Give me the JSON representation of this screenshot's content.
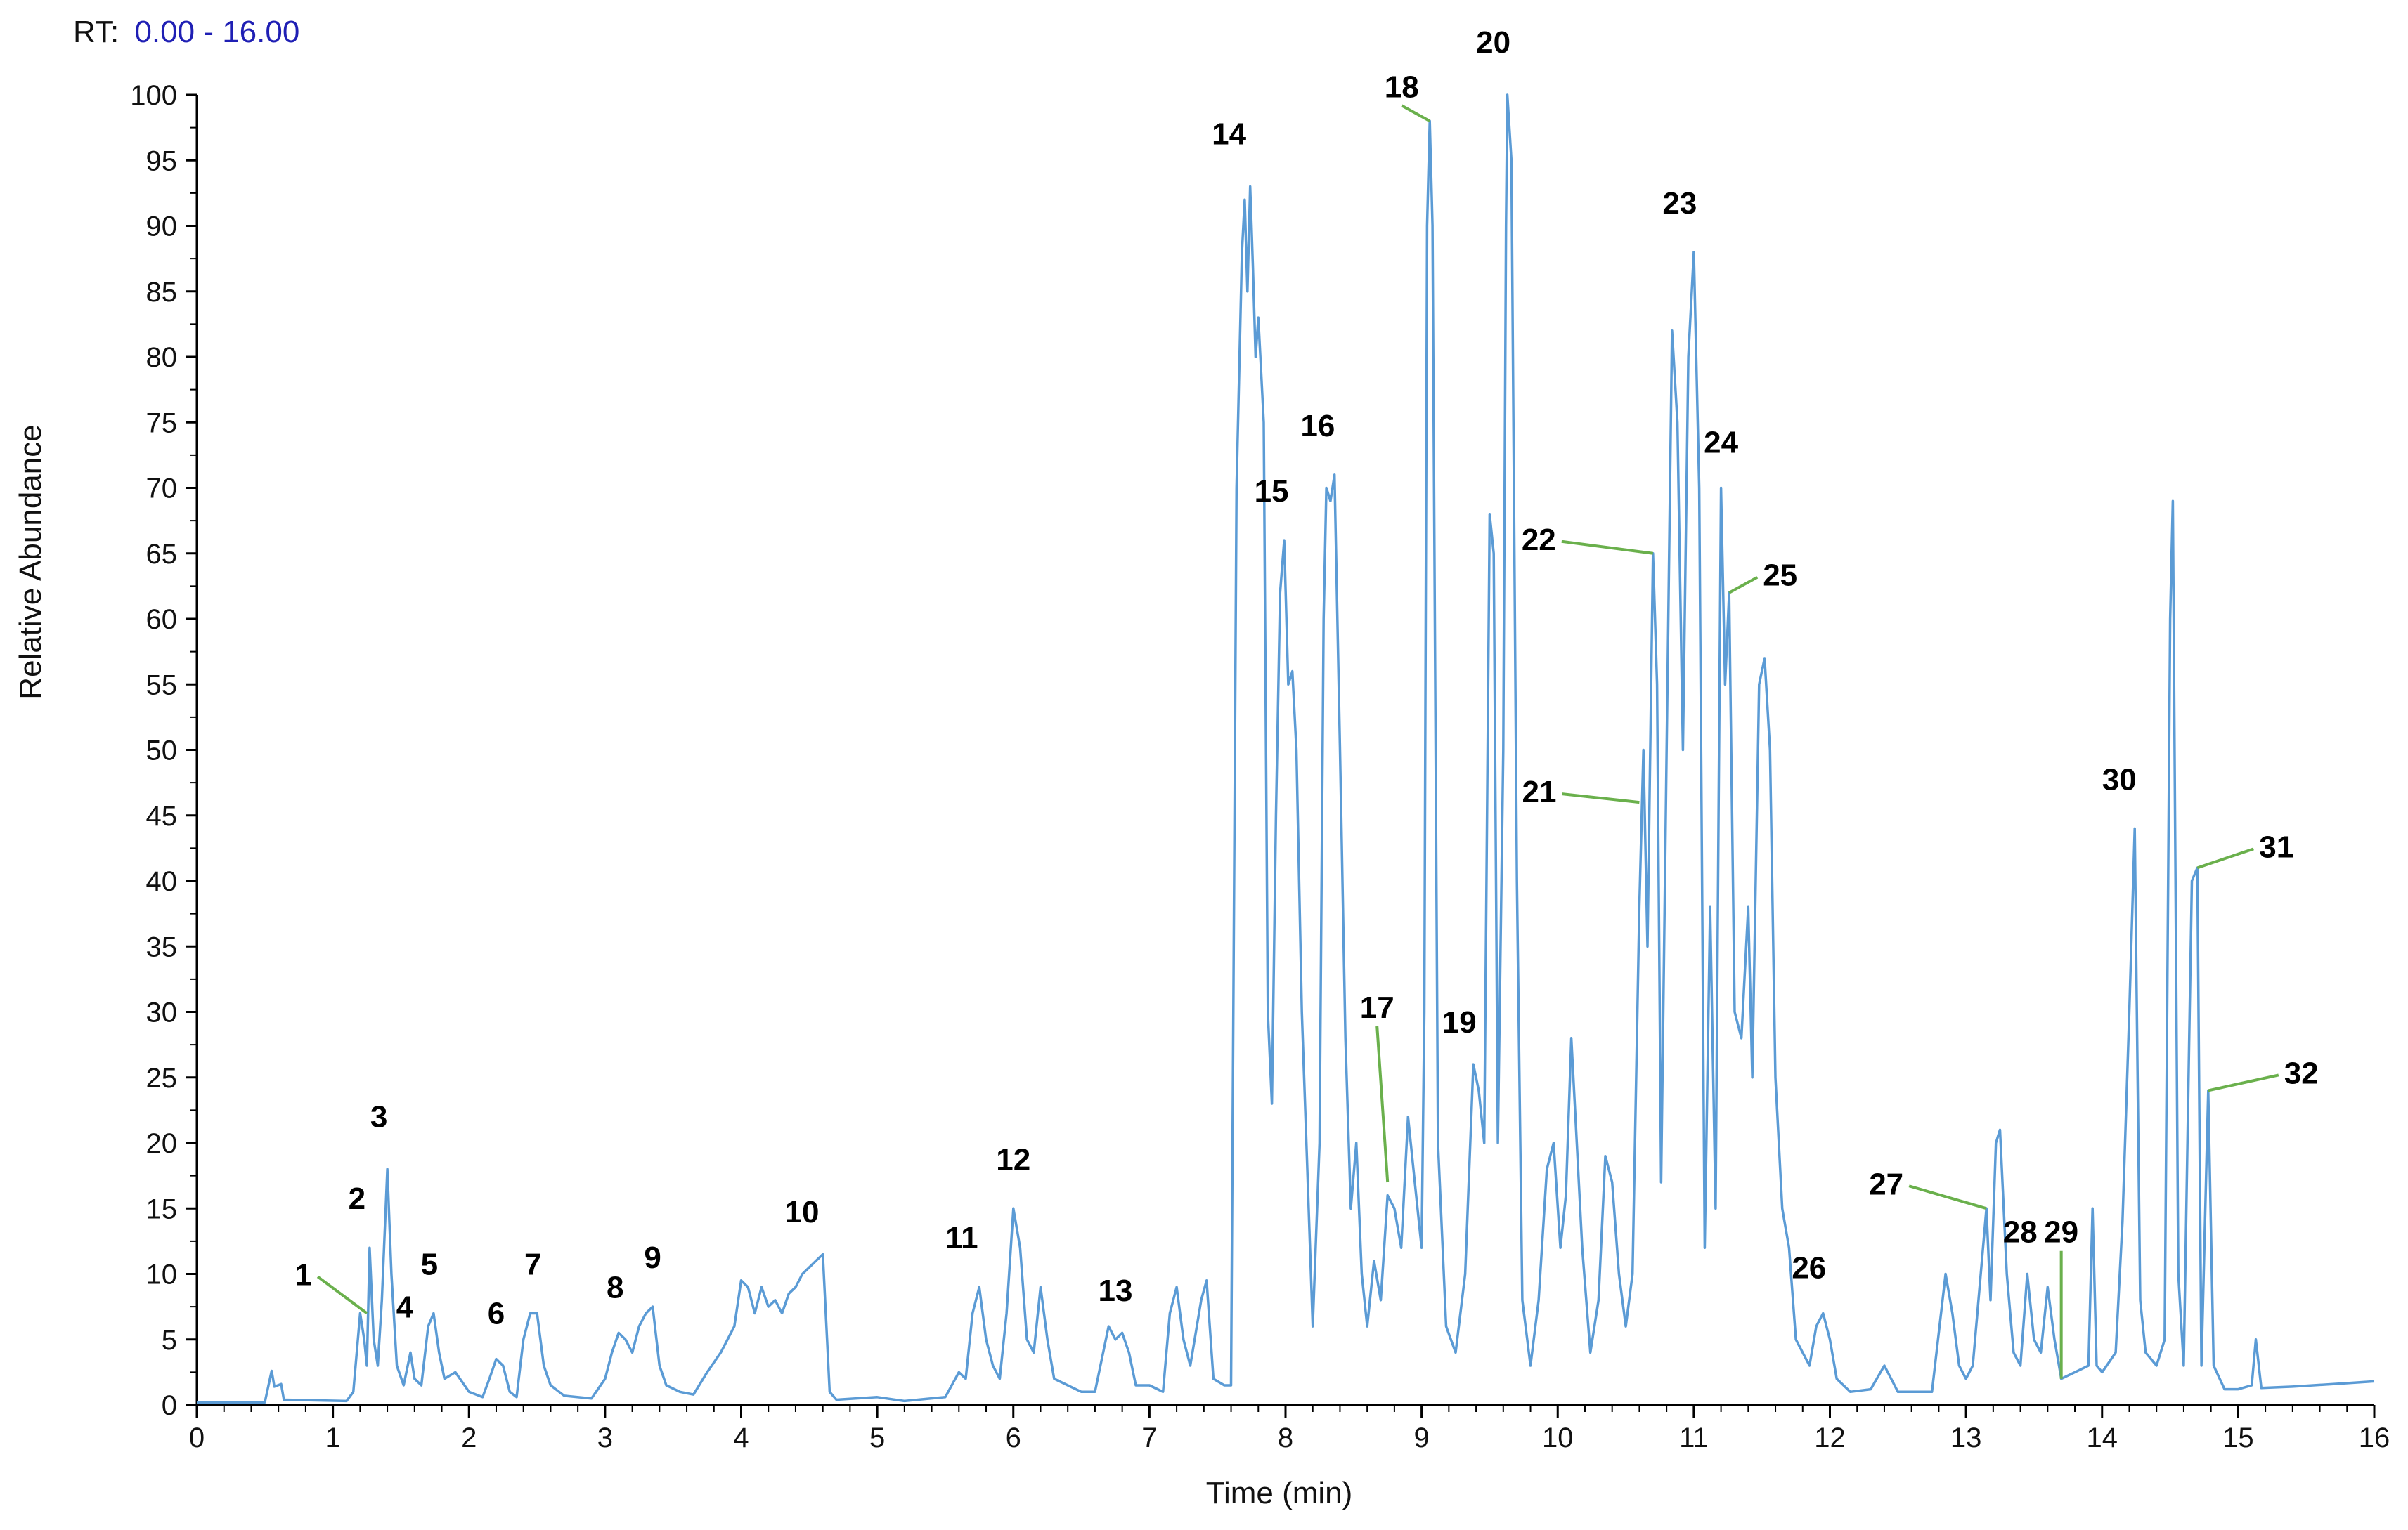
{
  "header": {
    "rt_prefix": "RT:",
    "rt_range": "0.00 - 16.00"
  },
  "colors": {
    "trace": "#5b9bd5",
    "callout": "#6ab04c",
    "rt_range": "#1f1fb4",
    "axis": "#000000"
  },
  "chart_data": {
    "type": "line",
    "xlabel": "Time (min)",
    "ylabel": "Relative Abundance",
    "xlim": [
      0,
      16
    ],
    "ylim": [
      0,
      100
    ],
    "x_ticks": [
      "0",
      "1",
      "2",
      "3",
      "4",
      "5",
      "6",
      "7",
      "8",
      "9",
      "10",
      "11",
      "12",
      "13",
      "14",
      "15",
      "16"
    ],
    "y_ticks": [
      "0",
      "5",
      "10",
      "15",
      "20",
      "25",
      "30",
      "35",
      "40",
      "45",
      "50",
      "55",
      "60",
      "65",
      "70",
      "75",
      "80",
      "85",
      "90",
      "95",
      "100"
    ],
    "grid": false,
    "series": [
      {
        "points": [
          [
            0,
            0.2
          ],
          [
            0.5,
            0.2
          ],
          [
            0.55,
            2.6
          ],
          [
            0.57,
            1.4
          ],
          [
            0.62,
            1.6
          ],
          [
            0.64,
            0.4
          ],
          [
            1.1,
            0.3
          ],
          [
            1.15,
            1.0
          ],
          [
            1.2,
            7
          ],
          [
            1.23,
            5
          ],
          [
            1.25,
            3
          ],
          [
            1.27,
            12
          ],
          [
            1.3,
            5
          ],
          [
            1.33,
            3
          ],
          [
            1.36,
            8
          ],
          [
            1.4,
            18
          ],
          [
            1.43,
            10
          ],
          [
            1.47,
            3
          ],
          [
            1.52,
            1.5
          ],
          [
            1.57,
            4
          ],
          [
            1.6,
            2
          ],
          [
            1.65,
            1.5
          ],
          [
            1.7,
            6
          ],
          [
            1.74,
            7
          ],
          [
            1.78,
            4
          ],
          [
            1.82,
            2
          ],
          [
            1.9,
            2.5
          ],
          [
            2.0,
            1
          ],
          [
            2.1,
            0.6
          ],
          [
            2.15,
            2
          ],
          [
            2.2,
            3.5
          ],
          [
            2.25,
            3
          ],
          [
            2.3,
            1
          ],
          [
            2.35,
            0.6
          ],
          [
            2.4,
            5
          ],
          [
            2.45,
            7
          ],
          [
            2.5,
            7
          ],
          [
            2.55,
            3
          ],
          [
            2.6,
            1.5
          ],
          [
            2.7,
            0.7
          ],
          [
            2.9,
            0.5
          ],
          [
            3.0,
            2
          ],
          [
            3.05,
            4
          ],
          [
            3.1,
            5.5
          ],
          [
            3.15,
            5
          ],
          [
            3.2,
            4
          ],
          [
            3.25,
            6
          ],
          [
            3.3,
            7
          ],
          [
            3.35,
            7.5
          ],
          [
            3.4,
            3
          ],
          [
            3.45,
            1.5
          ],
          [
            3.55,
            1
          ],
          [
            3.65,
            0.8
          ],
          [
            3.75,
            2.5
          ],
          [
            3.85,
            4
          ],
          [
            3.95,
            6
          ],
          [
            4.0,
            9.5
          ],
          [
            4.05,
            9
          ],
          [
            4.1,
            7
          ],
          [
            4.15,
            9
          ],
          [
            4.2,
            7.5
          ],
          [
            4.25,
            8
          ],
          [
            4.3,
            7
          ],
          [
            4.35,
            8.5
          ],
          [
            4.4,
            9
          ],
          [
            4.45,
            10
          ],
          [
            4.5,
            10.5
          ],
          [
            4.55,
            11
          ],
          [
            4.6,
            11.5
          ],
          [
            4.65,
            1
          ],
          [
            4.7,
            0.4
          ],
          [
            5.0,
            0.6
          ],
          [
            5.2,
            0.3
          ],
          [
            5.5,
            0.6
          ],
          [
            5.6,
            2.5
          ],
          [
            5.65,
            2
          ],
          [
            5.7,
            7
          ],
          [
            5.75,
            9
          ],
          [
            5.8,
            5
          ],
          [
            5.85,
            3
          ],
          [
            5.9,
            2
          ],
          [
            5.95,
            7
          ],
          [
            6.0,
            15
          ],
          [
            6.05,
            12
          ],
          [
            6.1,
            5
          ],
          [
            6.15,
            4
          ],
          [
            6.2,
            9
          ],
          [
            6.25,
            5
          ],
          [
            6.3,
            2
          ],
          [
            6.4,
            1.5
          ],
          [
            6.5,
            1
          ],
          [
            6.6,
            1
          ],
          [
            6.7,
            6
          ],
          [
            6.75,
            5
          ],
          [
            6.8,
            5.5
          ],
          [
            6.85,
            4
          ],
          [
            6.9,
            1.5
          ],
          [
            7.0,
            1.5
          ],
          [
            7.1,
            1
          ],
          [
            7.15,
            7
          ],
          [
            7.2,
            9
          ],
          [
            7.25,
            5
          ],
          [
            7.3,
            3
          ],
          [
            7.38,
            8
          ],
          [
            7.42,
            9.5
          ],
          [
            7.47,
            2
          ],
          [
            7.55,
            1.5
          ],
          [
            7.6,
            1.5
          ],
          [
            7.64,
            70
          ],
          [
            7.68,
            88
          ],
          [
            7.7,
            92
          ],
          [
            7.72,
            85
          ],
          [
            7.74,
            93
          ],
          [
            7.76,
            87
          ],
          [
            7.78,
            80
          ],
          [
            7.8,
            83
          ],
          [
            7.84,
            75
          ],
          [
            7.87,
            30
          ],
          [
            7.9,
            23
          ],
          [
            7.93,
            45
          ],
          [
            7.96,
            62
          ],
          [
            7.99,
            66
          ],
          [
            8.02,
            55
          ],
          [
            8.05,
            56
          ],
          [
            8.08,
            50
          ],
          [
            8.12,
            30
          ],
          [
            8.16,
            18
          ],
          [
            8.2,
            6
          ],
          [
            8.25,
            20
          ],
          [
            8.28,
            60
          ],
          [
            8.3,
            70
          ],
          [
            8.33,
            69
          ],
          [
            8.36,
            71
          ],
          [
            8.4,
            50
          ],
          [
            8.44,
            28
          ],
          [
            8.48,
            15
          ],
          [
            8.52,
            20
          ],
          [
            8.56,
            10
          ],
          [
            8.6,
            6
          ],
          [
            8.65,
            11
          ],
          [
            8.7,
            8
          ],
          [
            8.75,
            16
          ],
          [
            8.8,
            15
          ],
          [
            8.85,
            12
          ],
          [
            8.9,
            22
          ],
          [
            8.95,
            17
          ],
          [
            9.0,
            12
          ],
          [
            9.02,
            30
          ],
          [
            9.04,
            90
          ],
          [
            9.06,
            98
          ],
          [
            9.08,
            90
          ],
          [
            9.12,
            20
          ],
          [
            9.18,
            6
          ],
          [
            9.25,
            4
          ],
          [
            9.32,
            10
          ],
          [
            9.38,
            26
          ],
          [
            9.42,
            24
          ],
          [
            9.46,
            20
          ],
          [
            9.5,
            68
          ],
          [
            9.53,
            65
          ],
          [
            9.56,
            20
          ],
          [
            9.6,
            50
          ],
          [
            9.62,
            90
          ],
          [
            9.63,
            100
          ],
          [
            9.66,
            95
          ],
          [
            9.7,
            40
          ],
          [
            9.74,
            8
          ],
          [
            9.8,
            3
          ],
          [
            9.86,
            8
          ],
          [
            9.92,
            18
          ],
          [
            9.97,
            20
          ],
          [
            10.02,
            12
          ],
          [
            10.06,
            16
          ],
          [
            10.1,
            28
          ],
          [
            10.14,
            20
          ],
          [
            10.18,
            12
          ],
          [
            10.24,
            4
          ],
          [
            10.3,
            8
          ],
          [
            10.35,
            19
          ],
          [
            10.4,
            17
          ],
          [
            10.45,
            10
          ],
          [
            10.5,
            6
          ],
          [
            10.55,
            10
          ],
          [
            10.6,
            38
          ],
          [
            10.63,
            50
          ],
          [
            10.66,
            35
          ],
          [
            10.7,
            65
          ],
          [
            10.73,
            55
          ],
          [
            10.76,
            17
          ],
          [
            10.8,
            50
          ],
          [
            10.84,
            82
          ],
          [
            10.88,
            75
          ],
          [
            10.92,
            50
          ],
          [
            10.96,
            80
          ],
          [
            11.0,
            88
          ],
          [
            11.04,
            70
          ],
          [
            11.08,
            12
          ],
          [
            11.12,
            38
          ],
          [
            11.16,
            15
          ],
          [
            11.2,
            70
          ],
          [
            11.23,
            55
          ],
          [
            11.26,
            62
          ],
          [
            11.3,
            30
          ],
          [
            11.35,
            28
          ],
          [
            11.4,
            38
          ],
          [
            11.43,
            25
          ],
          [
            11.48,
            55
          ],
          [
            11.52,
            57
          ],
          [
            11.56,
            50
          ],
          [
            11.6,
            25
          ],
          [
            11.65,
            15
          ],
          [
            11.7,
            12
          ],
          [
            11.75,
            5
          ],
          [
            11.8,
            4
          ],
          [
            11.85,
            3
          ],
          [
            11.9,
            6
          ],
          [
            11.95,
            7
          ],
          [
            12.0,
            5
          ],
          [
            12.05,
            2
          ],
          [
            12.15,
            1
          ],
          [
            12.3,
            1.2
          ],
          [
            12.4,
            3
          ],
          [
            12.5,
            1
          ],
          [
            12.6,
            1
          ],
          [
            12.75,
            1
          ],
          [
            12.85,
            10
          ],
          [
            12.9,
            7
          ],
          [
            12.95,
            3
          ],
          [
            13.0,
            2
          ],
          [
            13.05,
            3
          ],
          [
            13.1,
            9
          ],
          [
            13.15,
            15
          ],
          [
            13.18,
            8
          ],
          [
            13.22,
            20
          ],
          [
            13.25,
            21
          ],
          [
            13.3,
            10
          ],
          [
            13.35,
            4
          ],
          [
            13.4,
            3
          ],
          [
            13.45,
            10
          ],
          [
            13.5,
            5
          ],
          [
            13.55,
            4
          ],
          [
            13.6,
            9
          ],
          [
            13.65,
            5
          ],
          [
            13.7,
            2
          ],
          [
            13.8,
            2.5
          ],
          [
            13.9,
            3
          ],
          [
            13.93,
            15
          ],
          [
            13.96,
            3
          ],
          [
            14.0,
            2.5
          ],
          [
            14.1,
            4
          ],
          [
            14.15,
            14
          ],
          [
            14.2,
            30
          ],
          [
            14.24,
            44
          ],
          [
            14.28,
            8
          ],
          [
            14.32,
            4
          ],
          [
            14.4,
            3
          ],
          [
            14.46,
            5
          ],
          [
            14.5,
            60
          ],
          [
            14.52,
            69
          ],
          [
            14.56,
            10
          ],
          [
            14.6,
            3
          ],
          [
            14.66,
            40
          ],
          [
            14.7,
            41
          ],
          [
            14.73,
            3
          ],
          [
            14.78,
            24
          ],
          [
            14.82,
            3
          ],
          [
            14.9,
            1.2
          ],
          [
            15.0,
            1.2
          ],
          [
            15.1,
            1.5
          ],
          [
            15.13,
            5
          ],
          [
            15.17,
            1.3
          ],
          [
            15.4,
            1.4
          ],
          [
            15.7,
            1.6
          ],
          [
            16.0,
            1.8
          ]
        ]
      }
    ],
    "annotations": [
      {
        "label": "1",
        "x": 1.25,
        "y": 7
      },
      {
        "label": "2",
        "x": 1.27,
        "y": 12
      },
      {
        "label": "3",
        "x": 1.4,
        "y": 18
      },
      {
        "label": "4",
        "x": 1.57,
        "y": 4
      },
      {
        "label": "5",
        "x": 1.74,
        "y": 7
      },
      {
        "label": "6",
        "x": 2.2,
        "y": 3.5
      },
      {
        "label": "7",
        "x": 2.47,
        "y": 7
      },
      {
        "label": "8",
        "x": 3.1,
        "y": 5.5
      },
      {
        "label": "9",
        "x": 3.35,
        "y": 7.5
      },
      {
        "label": "10",
        "x": 4.55,
        "y": 11
      },
      {
        "label": "11",
        "x": 5.75,
        "y": 9
      },
      {
        "label": "12",
        "x": 6.0,
        "y": 15
      },
      {
        "label": "13",
        "x": 6.75,
        "y": 5
      },
      {
        "label": "14",
        "x": 7.74,
        "y": 93
      },
      {
        "label": "15",
        "x": 7.99,
        "y": 66
      },
      {
        "label": "16",
        "x": 8.33,
        "y": 71
      },
      {
        "label": "17",
        "x": 8.75,
        "y": 17
      },
      {
        "label": "18",
        "x": 9.06,
        "y": 98
      },
      {
        "label": "19",
        "x": 9.38,
        "y": 26
      },
      {
        "label": "20",
        "x": 9.63,
        "y": 100
      },
      {
        "label": "21",
        "x": 10.6,
        "y": 46
      },
      {
        "label": "22",
        "x": 10.7,
        "y": 65
      },
      {
        "label": "23",
        "x": 11.0,
        "y": 88
      },
      {
        "label": "24",
        "x": 11.2,
        "y": 70
      },
      {
        "label": "25",
        "x": 11.26,
        "y": 62
      },
      {
        "label": "26",
        "x": 11.95,
        "y": 7
      },
      {
        "label": "27",
        "x": 13.15,
        "y": 15
      },
      {
        "label": "28",
        "x": 13.45,
        "y": 10
      },
      {
        "label": "29",
        "x": 13.7,
        "y": 2
      },
      {
        "label": "30",
        "x": 14.24,
        "y": 44
      },
      {
        "label": "31",
        "x": 14.7,
        "y": 41
      },
      {
        "label": "32",
        "x": 14.78,
        "y": 24
      }
    ]
  }
}
